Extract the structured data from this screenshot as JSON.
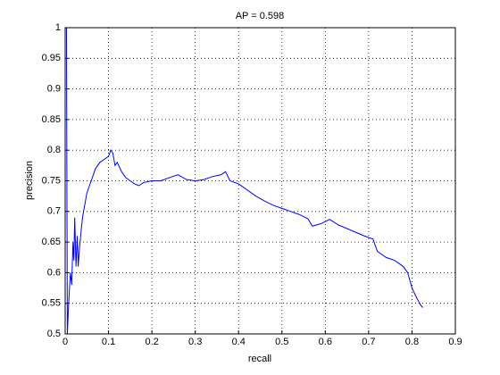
{
  "chart_data": {
    "type": "line",
    "title": "AP = 0.598",
    "x_label": "recall",
    "y_label": "precision",
    "x": [
      0.001,
      0.003,
      0.005,
      0.008,
      0.012,
      0.015,
      0.018,
      0.02,
      0.022,
      0.025,
      0.028,
      0.03,
      0.033,
      0.037,
      0.04,
      0.045,
      0.05,
      0.055,
      0.06,
      0.07,
      0.08,
      0.09,
      0.1,
      0.105,
      0.11,
      0.115,
      0.12,
      0.13,
      0.14,
      0.15,
      0.16,
      0.17,
      0.18,
      0.2,
      0.22,
      0.24,
      0.26,
      0.28,
      0.3,
      0.32,
      0.34,
      0.36,
      0.37,
      0.38,
      0.4,
      0.42,
      0.44,
      0.46,
      0.48,
      0.5,
      0.52,
      0.54,
      0.56,
      0.57,
      0.59,
      0.61,
      0.63,
      0.65,
      0.67,
      0.69,
      0.71,
      0.72,
      0.74,
      0.76,
      0.78,
      0.79,
      0.8,
      0.81,
      0.82,
      0.825
    ],
    "series": [
      {
        "color": "#0000ff",
        "values": [
          1.0,
          1.0,
          0.5,
          0.55,
          0.6,
          0.58,
          0.65,
          0.62,
          0.69,
          0.61,
          0.66,
          0.61,
          0.64,
          0.67,
          0.69,
          0.71,
          0.73,
          0.74,
          0.75,
          0.77,
          0.78,
          0.785,
          0.79,
          0.8,
          0.795,
          0.775,
          0.78,
          0.765,
          0.755,
          0.75,
          0.745,
          0.742,
          0.747,
          0.75,
          0.75,
          0.755,
          0.76,
          0.752,
          0.75,
          0.752,
          0.757,
          0.76,
          0.765,
          0.75,
          0.745,
          0.735,
          0.725,
          0.717,
          0.71,
          0.705,
          0.7,
          0.695,
          0.688,
          0.676,
          0.68,
          0.687,
          0.678,
          0.672,
          0.666,
          0.66,
          0.655,
          0.635,
          0.625,
          0.62,
          0.61,
          0.6,
          0.575,
          0.56,
          0.547,
          0.543
        ]
      }
    ],
    "xlim": [
      0,
      0.9
    ],
    "xticks": [
      0,
      0.1,
      0.2,
      0.3,
      0.4,
      0.5,
      0.6,
      0.7,
      0.8,
      0.9
    ],
    "ylim": [
      0.5,
      1
    ],
    "yticks": [
      0.5,
      0.55,
      0.6,
      0.65,
      0.7,
      0.75,
      0.8,
      0.85,
      0.9,
      0.95,
      1
    ],
    "grid": true
  }
}
